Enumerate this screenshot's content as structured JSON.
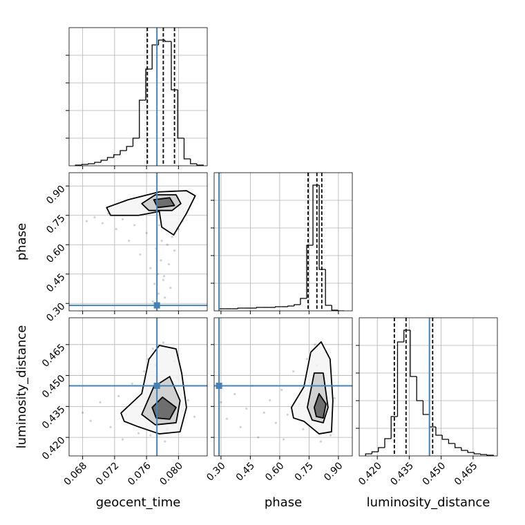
{
  "chart_data": [
    {
      "type": "histogram",
      "color": "#000000",
      "truth_color": "#4682b4",
      "xlim": [
        0.0663,
        0.0836
      ],
      "xticks": [
        0.068,
        0.072,
        0.076,
        0.08
      ],
      "ylim": [
        0,
        200
      ],
      "yticks": [
        40,
        80,
        120,
        160
      ],
      "bins": [
        0.0671,
        0.0679,
        0.0687,
        0.0695,
        0.0703,
        0.0711,
        0.0719,
        0.0727,
        0.0735,
        0.0743,
        0.0751,
        0.0759,
        0.0767,
        0.0775,
        0.0783,
        0.0791,
        0.0799,
        0.0807,
        0.0815,
        0.0823,
        0.0831
      ],
      "values": [
        1,
        2,
        3,
        5,
        8,
        12,
        16,
        22,
        28,
        40,
        95,
        140,
        175,
        182,
        180,
        110,
        40,
        10,
        3,
        1
      ],
      "quantiles": [
        0.0761,
        0.0781,
        0.0795
      ],
      "truth": 0.0773
    },
    {
      "type": "scatter",
      "color": "#000000",
      "truth_color": "#4682b4",
      "xlim": [
        0.0663,
        0.0836
      ],
      "xticks": [
        0.068,
        0.072,
        0.076,
        0.08
      ],
      "ylim": [
        0.262,
        0.968
      ],
      "yticks": [
        {
          "value": 0.3,
          "label": "0.30"
        },
        0.45,
        {
          "value": 0.6,
          "label": "0.60"
        },
        0.75,
        {
          "value": 0.9,
          "label": "0.90"
        }
      ],
      "ylabel": "phase",
      "x": [
        0.0685,
        0.0695,
        0.0705,
        0.0712,
        0.0722,
        0.073,
        0.0738,
        0.0745,
        0.0752,
        0.076,
        0.0765,
        0.077,
        0.0775,
        0.0778,
        0.0782,
        0.0786,
        0.079,
        0.0795,
        0.08,
        0.0805,
        0.0812,
        0.0768,
        0.0774,
        0.0779,
        0.0783,
        0.0788,
        0.0772,
        0.0781,
        0.0776,
        0.0792,
        0.0758,
        0.0764
      ],
      "y": [
        0.72,
        0.74,
        0.71,
        0.76,
        0.68,
        0.73,
        0.62,
        0.7,
        0.55,
        0.66,
        0.48,
        0.4,
        0.35,
        0.52,
        0.44,
        0.6,
        0.38,
        0.57,
        0.68,
        0.72,
        0.78,
        0.31,
        0.45,
        0.62,
        0.33,
        0.5,
        0.58,
        0.42,
        0.7,
        0.64,
        0.79,
        0.81
      ],
      "contours": [
        {
          "x": [
            0.071,
            0.0737,
            0.0776,
            0.081,
            0.0821,
            0.081,
            0.0794,
            0.0779,
            0.0776,
            0.075,
            0.0715
          ],
          "y": [
            0.79,
            0.83,
            0.87,
            0.876,
            0.85,
            0.76,
            0.65,
            0.69,
            0.77,
            0.75,
            0.75
          ]
        },
        {
          "x": [
            0.0754,
            0.0771,
            0.0797,
            0.0803,
            0.0792,
            0.0763
          ],
          "y": [
            0.81,
            0.855,
            0.855,
            0.81,
            0.775,
            0.775
          ]
        },
        {
          "x": [
            0.0769,
            0.0789,
            0.0795,
            0.0774
          ],
          "y": [
            0.83,
            0.84,
            0.8,
            0.79
          ]
        }
      ],
      "truth": [
        0.0773,
        0.29
      ]
    },
    {
      "type": "histogram",
      "color": "#000000",
      "truth_color": "#4682b4",
      "xlim": [
        0.265,
        0.971
      ],
      "xticks": [
        0.3,
        0.45,
        0.6,
        0.75,
        0.9
      ],
      "ylim": [
        0,
        200
      ],
      "yticks": [
        40,
        80,
        120,
        160
      ],
      "bins": [
        0.29,
        0.322,
        0.354,
        0.386,
        0.418,
        0.45,
        0.482,
        0.514,
        0.546,
        0.578,
        0.61,
        0.642,
        0.674,
        0.706,
        0.738,
        0.77,
        0.802,
        0.834,
        0.866,
        0.898,
        0.93
      ],
      "values": [
        3,
        3,
        3,
        4,
        4,
        4,
        5,
        5,
        5,
        6,
        6,
        7,
        9,
        18,
        95,
        182,
        60,
        8,
        1,
        0
      ],
      "quantiles": [
        0.745,
        0.79,
        0.815
      ],
      "truth": 0.29
    },
    {
      "type": "scatter",
      "color": "#000000",
      "truth_color": "#4682b4",
      "xlim": [
        0.0663,
        0.0836
      ],
      "xticks": [
        0.068,
        0.072,
        0.076,
        {
          "value": 0.08,
          "label": "0.080"
        }
      ],
      "ylim": [
        0.411,
        0.478
      ],
      "yticks": [
        {
          "value": 0.42,
          "label": "0.420"
        },
        0.435,
        {
          "value": 0.45,
          "label": "0.450"
        },
        0.465
      ],
      "xlabel": "geocent_time",
      "ylabel": "luminosity_distance",
      "x": [
        0.068,
        0.069,
        0.0702,
        0.0715,
        0.0725,
        0.0735,
        0.0742,
        0.075,
        0.0757,
        0.0762,
        0.0768,
        0.0773,
        0.0778,
        0.0783,
        0.0788,
        0.0793,
        0.0798,
        0.0805,
        0.0812,
        0.082,
        0.0765,
        0.0771,
        0.0776,
        0.0781,
        0.0786,
        0.076,
        0.0748,
        0.0795,
        0.0802,
        0.073
      ],
      "y": [
        0.432,
        0.428,
        0.437,
        0.425,
        0.44,
        0.431,
        0.446,
        0.422,
        0.452,
        0.458,
        0.463,
        0.436,
        0.429,
        0.418,
        0.441,
        0.426,
        0.449,
        0.433,
        0.438,
        0.43,
        0.421,
        0.455,
        0.444,
        0.466,
        0.424,
        0.434,
        0.439,
        0.457,
        0.427,
        0.419
      ],
      "contours": [
        {
          "x": [
            0.0728,
            0.0754,
            0.0763,
            0.0776,
            0.0797,
            0.0804,
            0.081,
            0.0802,
            0.0776,
            0.075,
            0.0732
          ],
          "y": [
            0.4318,
            0.4412,
            0.4579,
            0.4646,
            0.4629,
            0.4512,
            0.4345,
            0.4227,
            0.4217,
            0.4251,
            0.4278
          ]
        },
        {
          "x": [
            0.0754,
            0.0769,
            0.0789,
            0.0802,
            0.0797,
            0.0771
          ],
          "y": [
            0.4311,
            0.4445,
            0.4495,
            0.4378,
            0.4271,
            0.4261
          ]
        },
        {
          "x": [
            0.0767,
            0.078,
            0.0797,
            0.0789,
            0.0772
          ],
          "y": [
            0.4345,
            0.4395,
            0.4345,
            0.4288,
            0.4294
          ]
        }
      ],
      "truth": [
        0.0773,
        0.445
      ]
    },
    {
      "type": "scatter",
      "color": "#000000",
      "truth_color": "#4682b4",
      "xlim": [
        0.265,
        0.971
      ],
      "xticks": [
        {
          "value": 0.3,
          "label": "0.30"
        },
        0.45,
        {
          "value": 0.6,
          "label": "0.60"
        },
        0.75,
        {
          "value": 0.9,
          "label": "0.90"
        }
      ],
      "ylim": [
        0.411,
        0.478
      ],
      "yticks": [
        0.42,
        0.435,
        0.45,
        0.465
      ],
      "xlabel": "phase",
      "x": [
        0.3,
        0.33,
        0.37,
        0.4,
        0.43,
        0.46,
        0.49,
        0.52,
        0.55,
        0.58,
        0.61,
        0.64,
        0.67,
        0.7,
        0.72,
        0.74,
        0.76,
        0.78,
        0.8,
        0.82,
        0.84,
        0.86,
        0.88,
        0.79,
        0.81,
        0.77,
        0.83,
        0.75,
        0.85,
        0.62
      ],
      "y": [
        0.437,
        0.429,
        0.441,
        0.425,
        0.434,
        0.445,
        0.42,
        0.432,
        0.438,
        0.427,
        0.443,
        0.431,
        0.452,
        0.436,
        0.424,
        0.458,
        0.441,
        0.465,
        0.429,
        0.448,
        0.434,
        0.421,
        0.439,
        0.455,
        0.418,
        0.433,
        0.461,
        0.426,
        0.444,
        0.419
      ],
      "contours": [
        {
          "x": [
            0.66,
            0.7235,
            0.7588,
            0.8118,
            0.8576,
            0.8717,
            0.8647,
            0.8012,
            0.7235,
            0.6706
          ],
          "y": [
            0.4345,
            0.4445,
            0.4613,
            0.4663,
            0.4579,
            0.4378,
            0.4227,
            0.4217,
            0.4278,
            0.4294
          ]
        },
        {
          "x": [
            0.7412,
            0.7765,
            0.8224,
            0.8471,
            0.8224,
            0.7659
          ],
          "y": [
            0.4345,
            0.4512,
            0.4512,
            0.4345,
            0.4271,
            0.4284
          ]
        },
        {
          "x": [
            0.7765,
            0.8012,
            0.8365,
            0.8224,
            0.7871
          ],
          "y": [
            0.4345,
            0.4412,
            0.4362,
            0.4294,
            0.4301
          ]
        }
      ],
      "truth": [
        0.29,
        0.445
      ]
    },
    {
      "type": "histogram",
      "color": "#000000",
      "truth_color": "#4682b4",
      "xlim": [
        0.4115,
        0.4764
      ],
      "xticks": [
        {
          "value": 0.42,
          "label": "0.420"
        },
        0.435,
        {
          "value": 0.45,
          "label": "0.450"
        },
        0.465
      ],
      "ylim": [
        0,
        200
      ],
      "yticks": [
        40,
        80,
        120,
        160
      ],
      "xlabel": "luminosity_distance",
      "bins": [
        0.4145,
        0.4175,
        0.4205,
        0.4235,
        0.4265,
        0.4295,
        0.4325,
        0.4355,
        0.4385,
        0.4415,
        0.4445,
        0.4475,
        0.4505,
        0.4535,
        0.4565,
        0.4595,
        0.4625,
        0.4655,
        0.4685,
        0.4715,
        0.4745
      ],
      "values": [
        3,
        6,
        12,
        25,
        57,
        165,
        182,
        115,
        80,
        60,
        42,
        30,
        24,
        18,
        12,
        8,
        5,
        3,
        2,
        1
      ],
      "quantiles": [
        0.428,
        0.4335,
        0.446
      ],
      "truth": 0.4445
    }
  ]
}
